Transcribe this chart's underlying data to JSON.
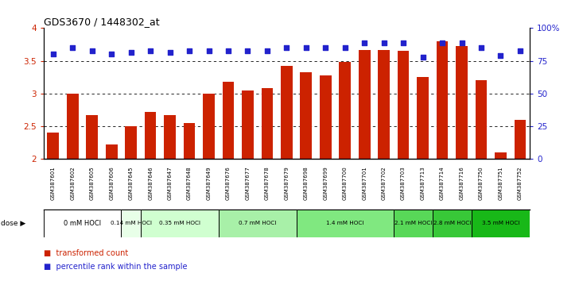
{
  "title": "GDS3670 / 1448302_at",
  "samples": [
    "GSM387601",
    "GSM387602",
    "GSM387605",
    "GSM387606",
    "GSM387645",
    "GSM387646",
    "GSM387647",
    "GSM387648",
    "GSM387649",
    "GSM387676",
    "GSM387677",
    "GSM387678",
    "GSM387679",
    "GSM387698",
    "GSM387699",
    "GSM387700",
    "GSM387701",
    "GSM387702",
    "GSM387703",
    "GSM387713",
    "GSM387714",
    "GSM387716",
    "GSM387750",
    "GSM387751",
    "GSM387752"
  ],
  "bar_values": [
    2.4,
    3.0,
    2.67,
    2.22,
    2.5,
    2.72,
    2.67,
    2.55,
    3.0,
    3.18,
    3.04,
    3.08,
    3.42,
    3.33,
    3.27,
    3.48,
    3.67,
    3.66,
    3.65,
    3.25,
    3.8,
    3.72,
    3.2,
    2.1,
    2.6
  ],
  "dot_values": [
    3.6,
    3.7,
    3.65,
    3.6,
    3.63,
    3.65,
    3.63,
    3.65,
    3.65,
    3.65,
    3.65,
    3.65,
    3.7,
    3.7,
    3.7,
    3.7,
    3.78,
    3.78,
    3.77,
    3.55,
    3.78,
    3.78,
    3.7,
    3.58,
    3.65
  ],
  "dose_groups": [
    {
      "label": "0 mM HOCl",
      "start": 0,
      "end": 4,
      "color": "#ffffff"
    },
    {
      "label": "0.14 mM HOCl",
      "start": 4,
      "end": 5,
      "color": "#e8ffe8"
    },
    {
      "label": "0.35 mM HOCl",
      "start": 5,
      "end": 9,
      "color": "#d0ffd0"
    },
    {
      "label": "0.7 mM HOCl",
      "start": 9,
      "end": 13,
      "color": "#a8f0a8"
    },
    {
      "label": "1.4 mM HOCl",
      "start": 13,
      "end": 18,
      "color": "#80e880"
    },
    {
      "label": "2.1 mM HOCl",
      "start": 18,
      "end": 20,
      "color": "#58d858"
    },
    {
      "label": "2.8 mM HOCl",
      "start": 20,
      "end": 22,
      "color": "#38c838"
    },
    {
      "label": "3.5 mM HOCl",
      "start": 22,
      "end": 25,
      "color": "#18b818"
    }
  ],
  "bar_color": "#cc2200",
  "dot_color": "#2222cc",
  "ylim": [
    2.0,
    4.0
  ],
  "yticks": [
    2.0,
    2.5,
    3.0,
    3.5,
    4.0
  ],
  "ytick_labels": [
    "2",
    "2.5",
    "3",
    "3.5",
    "4"
  ],
  "y_right_pcts": [
    0,
    25,
    50,
    75,
    100
  ],
  "y_right_labels": [
    "0",
    "25",
    "50",
    "75",
    "100%"
  ],
  "label_bg_color": "#d0d0d0",
  "plot_bg_color": "#ffffff"
}
